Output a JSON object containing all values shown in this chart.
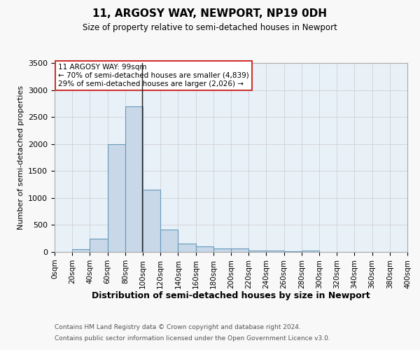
{
  "title": "11, ARGOSY WAY, NEWPORT, NP19 0DH",
  "subtitle": "Size of property relative to semi-detached houses in Newport",
  "xlabel": "Distribution of semi-detached houses by size in Newport",
  "ylabel": "Number of semi-detached properties",
  "footnote1": "Contains HM Land Registry data © Crown copyright and database right 2024.",
  "footnote2": "Contains public sector information licensed under the Open Government Licence v3.0.",
  "bin_labels": [
    "0sqm",
    "20sqm",
    "40sqm",
    "60sqm",
    "80sqm",
    "100sqm",
    "120sqm",
    "140sqm",
    "160sqm",
    "180sqm",
    "200sqm",
    "220sqm",
    "240sqm",
    "260sqm",
    "280sqm",
    "300sqm",
    "320sqm",
    "340sqm",
    "360sqm",
    "380sqm",
    "400sqm"
  ],
  "bar_values": [
    0,
    50,
    250,
    2000,
    2700,
    1150,
    420,
    160,
    100,
    60,
    60,
    30,
    25,
    10,
    30,
    5,
    0,
    0,
    0,
    0
  ],
  "bin_edges": [
    0,
    20,
    40,
    60,
    80,
    100,
    120,
    140,
    160,
    180,
    200,
    220,
    240,
    260,
    280,
    300,
    320,
    340,
    360,
    380,
    400
  ],
  "bar_color": "#c8d8e8",
  "bar_edge_color": "#6699bb",
  "property_line_x": 99,
  "property_size": "99sqm",
  "pct_smaller": 70,
  "count_smaller": 4839,
  "pct_larger": 29,
  "count_larger": 2026,
  "annotation_box_color": "#ffffff",
  "annotation_box_edge": "#cc3333",
  "ylim": [
    0,
    3500
  ],
  "yticks": [
    0,
    500,
    1000,
    1500,
    2000,
    2500,
    3000,
    3500
  ],
  "grid_color": "#cccccc",
  "bg_color": "#e8f0f8",
  "fig_bg_color": "#f8f8f8"
}
